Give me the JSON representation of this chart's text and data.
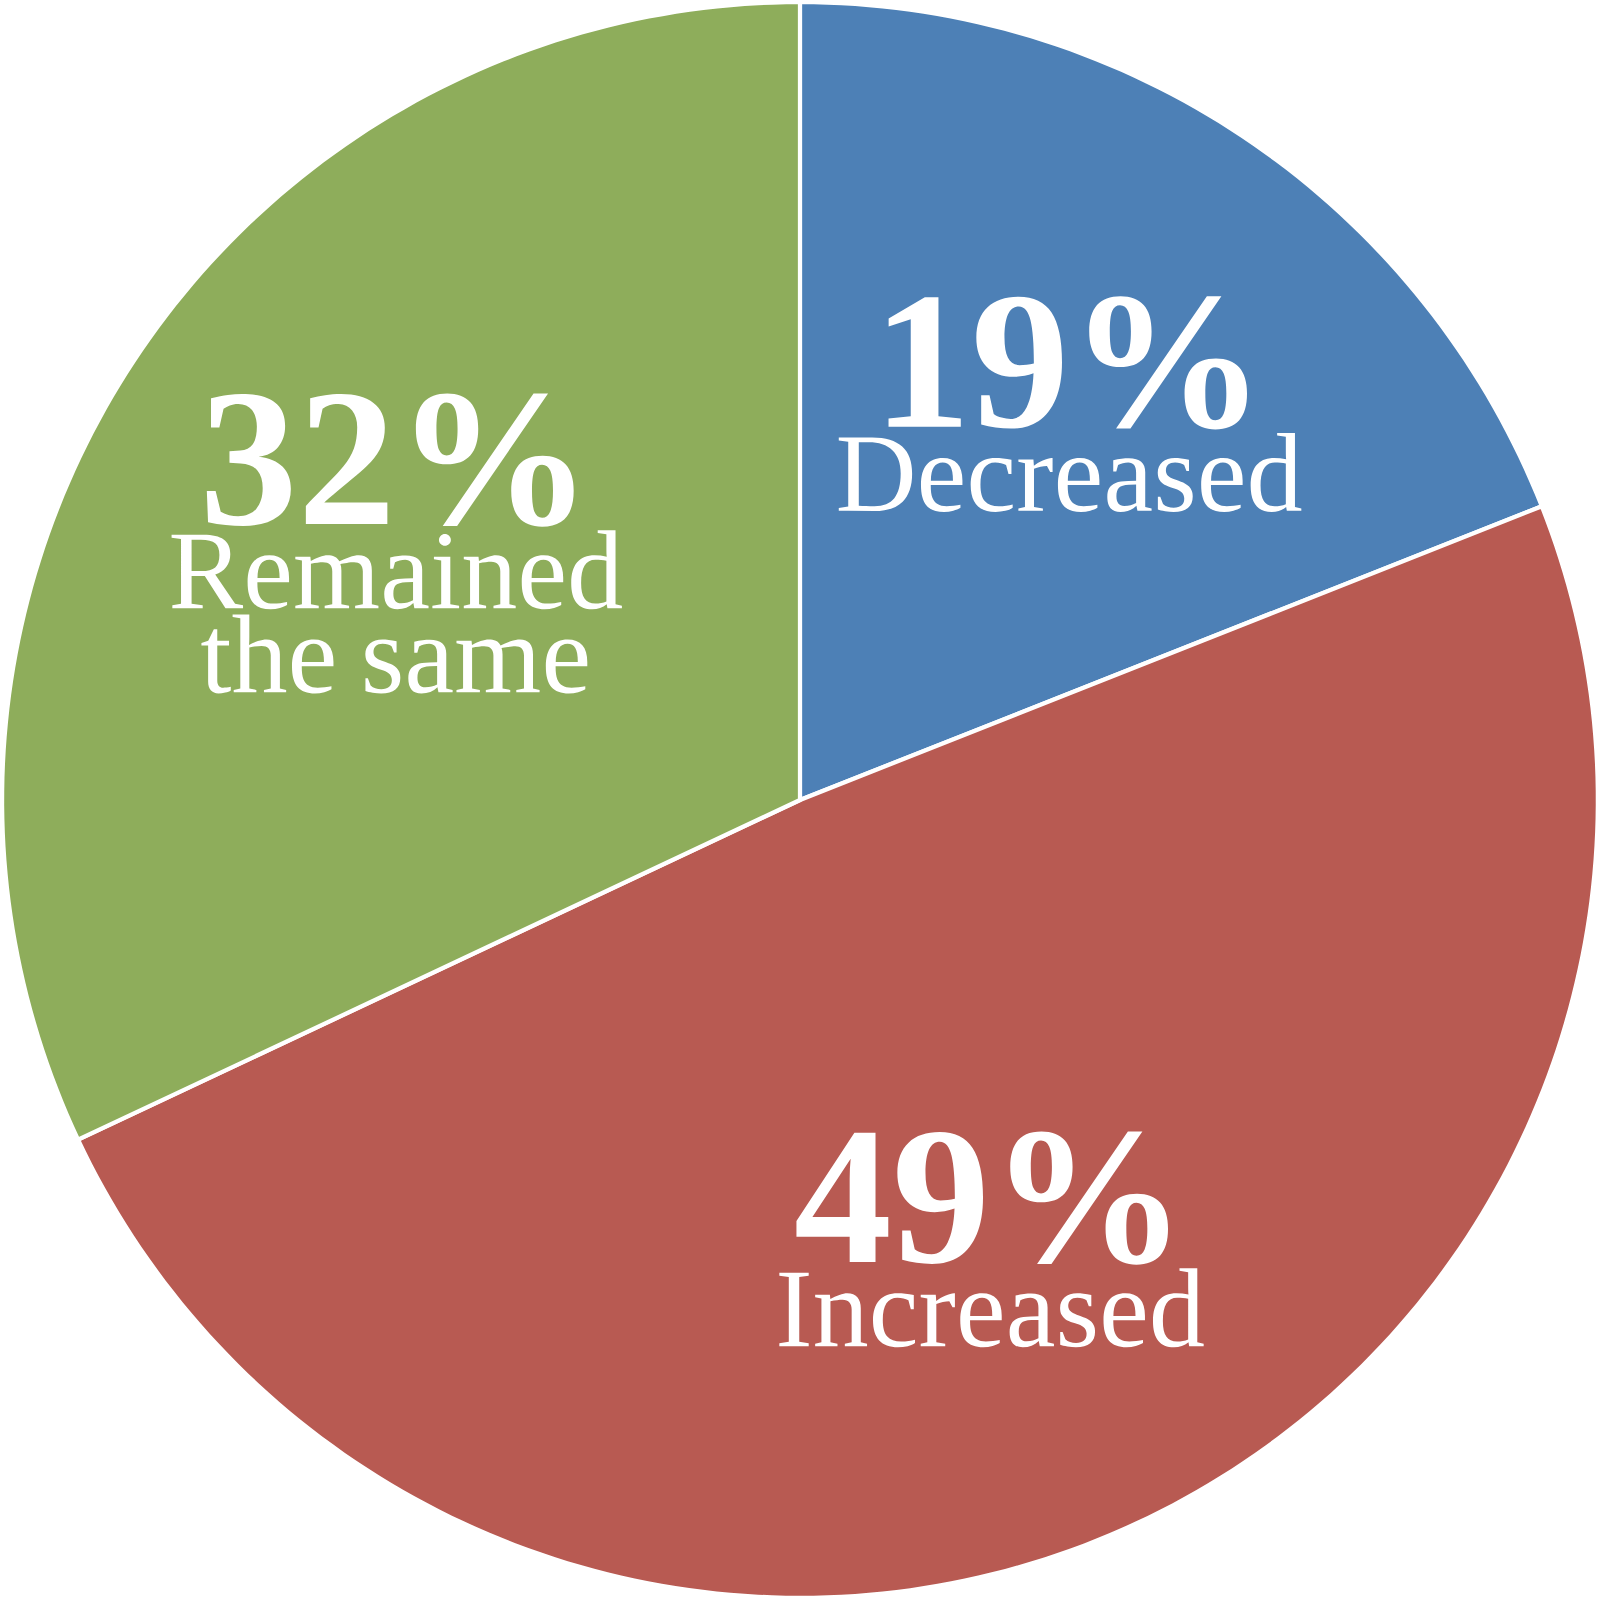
{
  "chart_data": {
    "type": "pie",
    "categories": [
      "Decreased",
      "Increased",
      "Remained the same"
    ],
    "values": [
      19,
      49,
      32
    ],
    "value_labels": [
      "19%",
      "49%",
      "32%"
    ],
    "colors": [
      "#4d80b6",
      "#b85a52",
      "#8ead5b"
    ]
  }
}
